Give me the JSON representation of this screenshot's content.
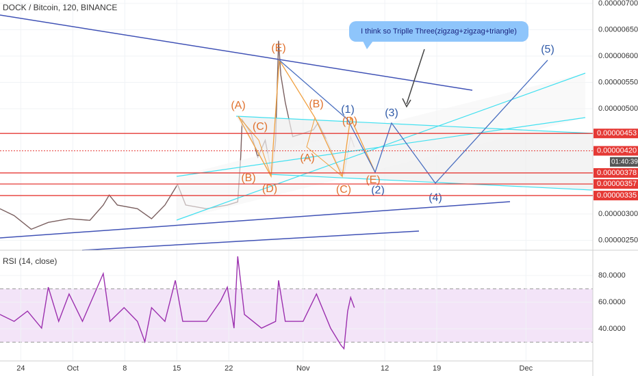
{
  "chart_data": [
    {
      "type": "line",
      "title": "DOCK / Bitcoin, 120, BINANCE",
      "color": "#7a5f5f",
      "x": [
        -2.8,
        -0.9,
        1.4,
        3.7,
        6.5,
        9.3,
        11.1,
        11.9,
        13.0,
        15.7,
        17.6,
        19.4,
        21.1,
        22.2,
        25.0,
        27.8,
        29.2,
        29.6,
        29.8,
        31.0,
        31.9,
        32.9,
        33.8,
        34.3,
        34.7,
        35.0,
        35.6,
        36.6,
        38.0,
        39.4,
        40.0,
        41.2,
        42.6,
        43.5,
        44.4,
        44.9
      ],
      "values": [
        3.1e-06,
        2.97e-06,
        2.71e-06,
        2.84e-06,
        2.91e-06,
        2.88e-06,
        3.17e-06,
        3.36e-06,
        3.17e-06,
        3.1e-06,
        2.91e-06,
        3.17e-06,
        3.56e-06,
        3.17e-06,
        3.1e-06,
        3.17e-06,
        3.23e-06,
        4.08e-06,
        4.79e-06,
        4.53e-06,
        4.08e-06,
        4.4e-06,
        3.75e-06,
        4.4e-06,
        6.29e-06,
        5.64e-06,
        5.12e-06,
        4.47e-06,
        4.53e-06,
        4.6e-06,
        4.73e-06,
        4.4e-06,
        3.95e-06,
        3.75e-06,
        4.47e-06,
        4.27e-06
      ],
      "xlim": [
        -2.8,
        77
      ],
      "xticks": [
        {
          "value": 0,
          "label": "24"
        },
        {
          "value": 7,
          "label": "Oct"
        },
        {
          "value": 14,
          "label": "8"
        },
        {
          "value": 21,
          "label": "15"
        },
        {
          "value": 28,
          "label": "22"
        },
        {
          "value": 38,
          "label": "Nov"
        },
        {
          "value": 49,
          "label": "12"
        },
        {
          "value": 56,
          "label": "19"
        },
        {
          "value": 68,
          "label": "Dec"
        }
      ],
      "ylim": [
        2.325e-06,
        7.065e-06
      ],
      "yticks": [
        {
          "value": 2.5e-06,
          "label": "0.00000250"
        },
        {
          "value": 3e-06,
          "label": "0.00000300"
        },
        {
          "value": 5e-06,
          "label": "0.00000500"
        },
        {
          "value": 5.5e-06,
          "label": "0.00000550"
        },
        {
          "value": 6e-06,
          "label": "0.00000600"
        },
        {
          "value": 6.5e-06,
          "label": "0.00000650"
        },
        {
          "value": 7e-06,
          "label": "0.00000700"
        }
      ],
      "price_levels": [
        {
          "value": 4.53e-06,
          "label": "0.00000453"
        },
        {
          "value": 4.2e-06,
          "label": "0.00000420"
        },
        {
          "value": 3.78e-06,
          "label": "0.00000378"
        },
        {
          "value": 3.57e-06,
          "label": "0.00000357"
        },
        {
          "value": 3.35e-06,
          "label": "0.00000335"
        }
      ],
      "level_color": "#e53935",
      "countdown": "01:40:39",
      "callout": "I think so Triplle Three(zigzag+zigzag+triangle)",
      "annotations": [
        "(A)",
        "(C)",
        "(E)",
        "(B)",
        "(D)",
        "(B)",
        "(D)",
        "(A)",
        "(C)",
        "(E)",
        "(1)",
        "(3)",
        "(5)",
        "(2)",
        "(4)"
      ]
    },
    {
      "type": "line",
      "title": "RSI (14, close)",
      "color": "#9b2fae",
      "x": [
        -2.8,
        -0.9,
        0.9,
        2.8,
        3.7,
        5.1,
        6.5,
        8.3,
        11.1,
        12.0,
        13.9,
        15.7,
        16.7,
        17.6,
        19.4,
        20.8,
        21.8,
        25.0,
        26.9,
        27.8,
        28.7,
        29.2,
        30.1,
        32.4,
        34.3,
        34.7,
        35.6,
        38.0,
        39.8,
        41.7,
        43.1,
        43.5,
        44.0,
        44.4,
        44.9
      ],
      "values": [
        50.8,
        45.6,
        53.3,
        40.5,
        71.3,
        45.6,
        66.2,
        45.6,
        81.5,
        45.6,
        55.9,
        45.6,
        30.3,
        55.9,
        45.6,
        76.4,
        45.6,
        45.6,
        61.0,
        71.3,
        40.5,
        94.4,
        50.8,
        40.5,
        45.6,
        76.4,
        45.6,
        45.6,
        66.2,
        40.5,
        27.7,
        25.1,
        53.3,
        63.6,
        55.9
      ],
      "ylim": [
        15.9,
        98.5
      ],
      "yticks": [
        {
          "value": 40,
          "label": "40.0000"
        },
        {
          "value": 60,
          "label": "60.0000"
        },
        {
          "value": 80,
          "label": "80.0000"
        }
      ],
      "bands": [
        30,
        70
      ],
      "band_color": "#f3e4f8"
    }
  ]
}
